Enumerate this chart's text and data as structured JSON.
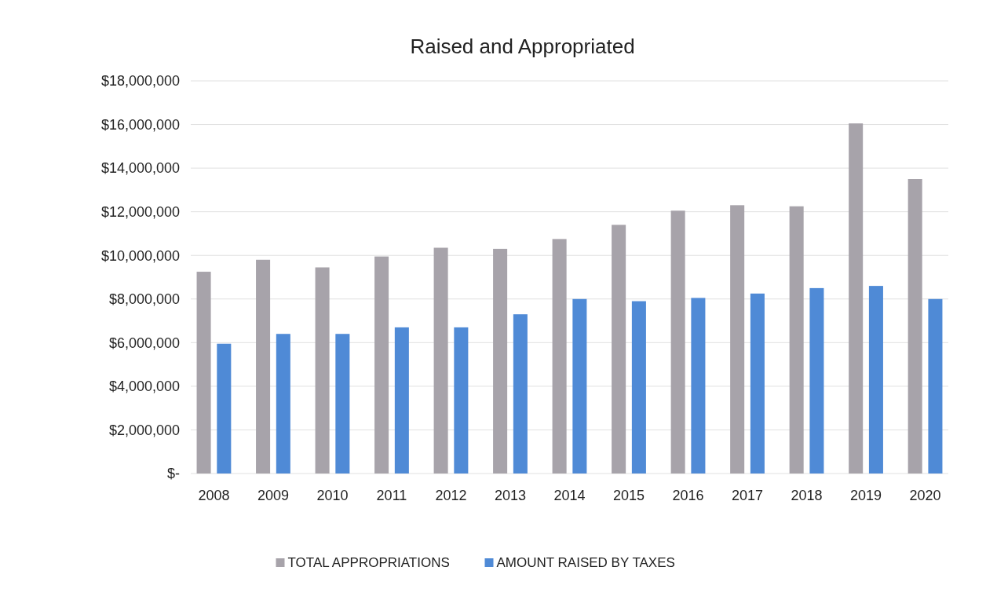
{
  "chart_data": {
    "type": "bar",
    "title": "Raised and Appropriated",
    "categories": [
      "2008",
      "2009",
      "2010",
      "2011",
      "2012",
      "2013",
      "2014",
      "2015",
      "2016",
      "2017",
      "2018",
      "2019",
      "2020"
    ],
    "series": [
      {
        "name": "TOTAL APPROPRIATIONS",
        "color": "#a7a3aa",
        "values": [
          9250000,
          9800000,
          9450000,
          9950000,
          10350000,
          10300000,
          10750000,
          11400000,
          12050000,
          12300000,
          12250000,
          16050000,
          13500000
        ]
      },
      {
        "name": "AMOUNT RAISED BY TAXES",
        "color": "#4f8ad6",
        "values": [
          5950000,
          6400000,
          6400000,
          6700000,
          6700000,
          7300000,
          8000000,
          7900000,
          8050000,
          8250000,
          8500000,
          8600000,
          8000000
        ]
      }
    ],
    "ylim": [
      0,
      18000000
    ],
    "yticks": [
      {
        "value": 0,
        "label": "$-"
      },
      {
        "value": 2000000,
        "label": "$2,000,000"
      },
      {
        "value": 4000000,
        "label": "$4,000,000"
      },
      {
        "value": 6000000,
        "label": "$6,000,000"
      },
      {
        "value": 8000000,
        "label": "$8,000,000"
      },
      {
        "value": 10000000,
        "label": "$10,000,000"
      },
      {
        "value": 12000000,
        "label": "$12,000,000"
      },
      {
        "value": 14000000,
        "label": "$14,000,000"
      },
      {
        "value": 16000000,
        "label": "$16,000,000"
      },
      {
        "value": 18000000,
        "label": "$18,000,000"
      }
    ],
    "grid": "y",
    "legend": "bottom"
  }
}
